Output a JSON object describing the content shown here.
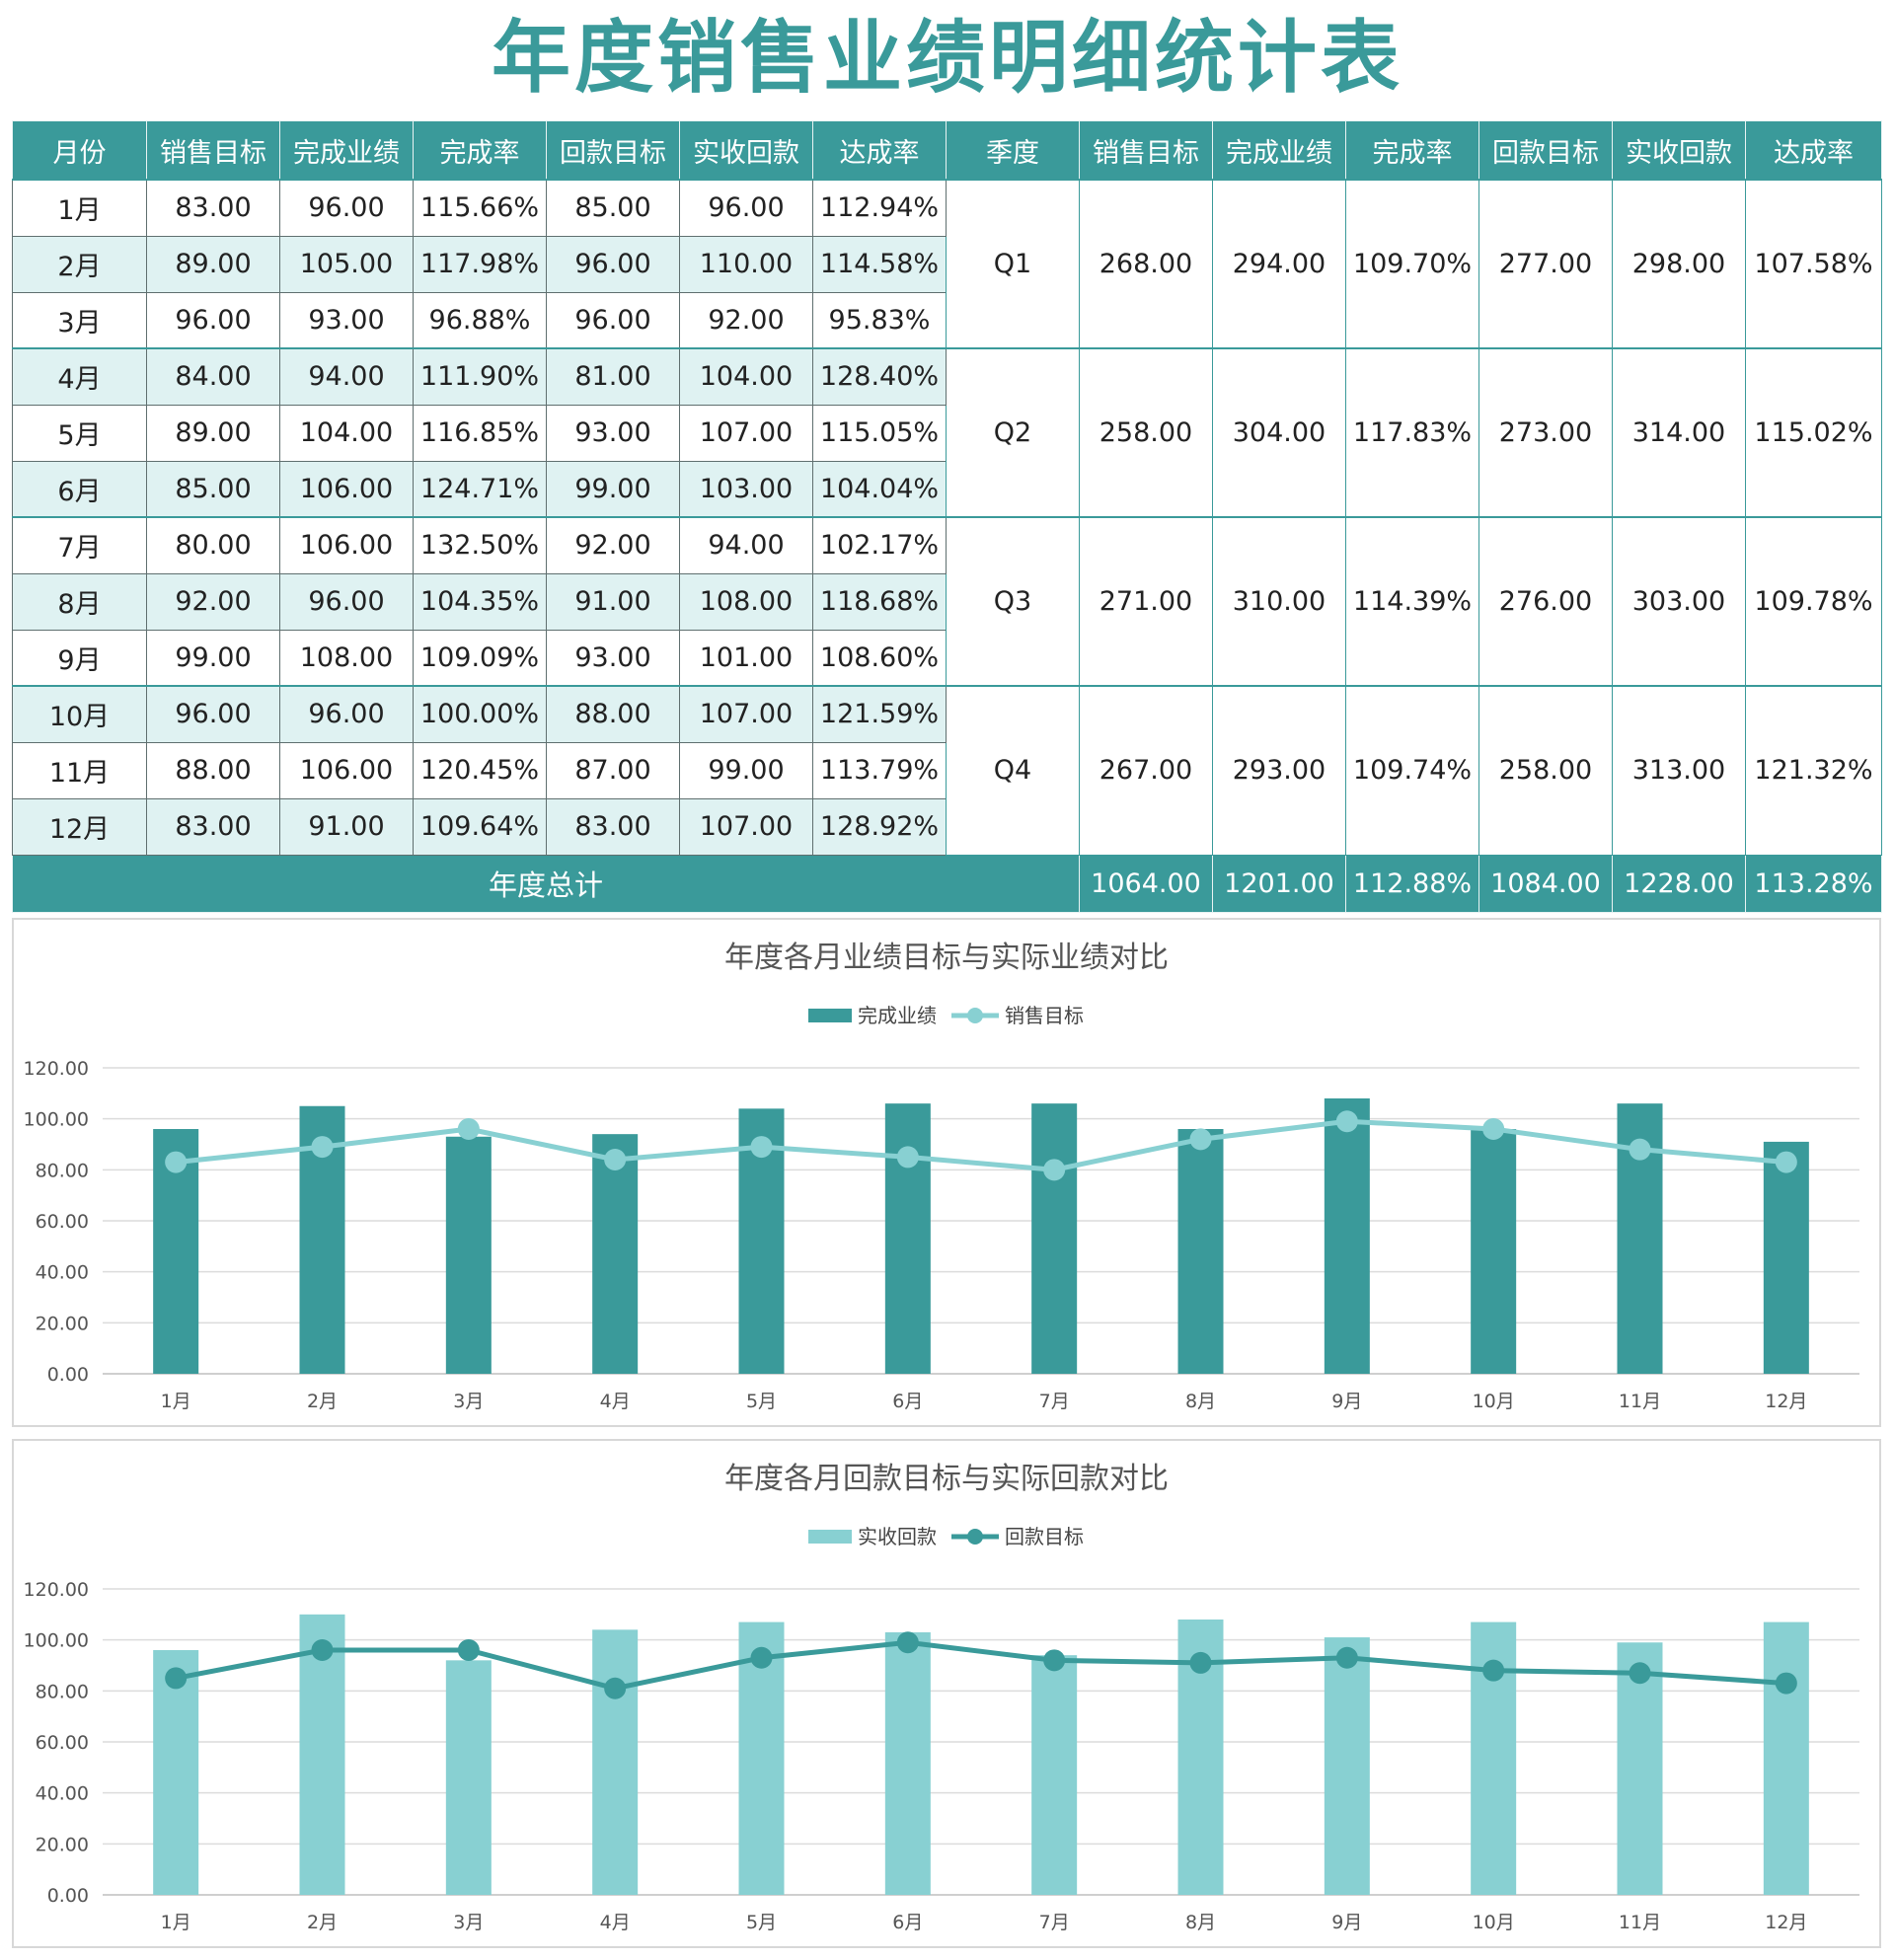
{
  "title": "年度销售业绩明细统计表",
  "colors": {
    "teal": "#3a9a9a",
    "light_teal": "#88d0d2",
    "alt_row": "#dff2f2"
  },
  "table": {
    "headers": [
      "月份",
      "销售目标",
      "完成业绩",
      "完成率",
      "回款目标",
      "实收回款",
      "达成率",
      "季度",
      "销售目标",
      "完成业绩",
      "完成率",
      "回款目标",
      "实收回款",
      "达成率"
    ],
    "months": [
      {
        "month": "1月",
        "target": "83.00",
        "done": "96.00",
        "rate": "115.66%",
        "pay_target": "85.00",
        "pay_recv": "96.00",
        "pay_rate": "112.94%"
      },
      {
        "month": "2月",
        "target": "89.00",
        "done": "105.00",
        "rate": "117.98%",
        "pay_target": "96.00",
        "pay_recv": "110.00",
        "pay_rate": "114.58%"
      },
      {
        "month": "3月",
        "target": "96.00",
        "done": "93.00",
        "rate": "96.88%",
        "pay_target": "96.00",
        "pay_recv": "92.00",
        "pay_rate": "95.83%"
      },
      {
        "month": "4月",
        "target": "84.00",
        "done": "94.00",
        "rate": "111.90%",
        "pay_target": "81.00",
        "pay_recv": "104.00",
        "pay_rate": "128.40%"
      },
      {
        "month": "5月",
        "target": "89.00",
        "done": "104.00",
        "rate": "116.85%",
        "pay_target": "93.00",
        "pay_recv": "107.00",
        "pay_rate": "115.05%"
      },
      {
        "month": "6月",
        "target": "85.00",
        "done": "106.00",
        "rate": "124.71%",
        "pay_target": "99.00",
        "pay_recv": "103.00",
        "pay_rate": "104.04%"
      },
      {
        "month": "7月",
        "target": "80.00",
        "done": "106.00",
        "rate": "132.50%",
        "pay_target": "92.00",
        "pay_recv": "94.00",
        "pay_rate": "102.17%"
      },
      {
        "month": "8月",
        "target": "92.00",
        "done": "96.00",
        "rate": "104.35%",
        "pay_target": "91.00",
        "pay_recv": "108.00",
        "pay_rate": "118.68%"
      },
      {
        "month": "9月",
        "target": "99.00",
        "done": "108.00",
        "rate": "109.09%",
        "pay_target": "93.00",
        "pay_recv": "101.00",
        "pay_rate": "108.60%"
      },
      {
        "month": "10月",
        "target": "96.00",
        "done": "96.00",
        "rate": "100.00%",
        "pay_target": "88.00",
        "pay_recv": "107.00",
        "pay_rate": "121.59%"
      },
      {
        "month": "11月",
        "target": "88.00",
        "done": "106.00",
        "rate": "120.45%",
        "pay_target": "87.00",
        "pay_recv": "99.00",
        "pay_rate": "113.79%"
      },
      {
        "month": "12月",
        "target": "83.00",
        "done": "91.00",
        "rate": "109.64%",
        "pay_target": "83.00",
        "pay_recv": "107.00",
        "pay_rate": "128.92%"
      }
    ],
    "quarters": [
      {
        "q": "Q1",
        "target": "268.00",
        "done": "294.00",
        "rate": "109.70%",
        "pay_target": "277.00",
        "pay_recv": "298.00",
        "pay_rate": "107.58%"
      },
      {
        "q": "Q2",
        "target": "258.00",
        "done": "304.00",
        "rate": "117.83%",
        "pay_target": "273.00",
        "pay_recv": "314.00",
        "pay_rate": "115.02%"
      },
      {
        "q": "Q3",
        "target": "271.00",
        "done": "310.00",
        "rate": "114.39%",
        "pay_target": "276.00",
        "pay_recv": "303.00",
        "pay_rate": "109.78%"
      },
      {
        "q": "Q4",
        "target": "267.00",
        "done": "293.00",
        "rate": "109.74%",
        "pay_target": "258.00",
        "pay_recv": "313.00",
        "pay_rate": "121.32%"
      }
    ],
    "total": {
      "label": "年度总计",
      "target": "1064.00",
      "done": "1201.00",
      "rate": "112.88%",
      "pay_target": "1084.00",
      "pay_recv": "1228.00",
      "pay_rate": "113.28%"
    }
  },
  "chart_data": [
    {
      "type": "bar",
      "title": "年度各月业绩目标与实际业绩对比",
      "categories": [
        "1月",
        "2月",
        "3月",
        "4月",
        "5月",
        "6月",
        "7月",
        "8月",
        "9月",
        "10月",
        "11月",
        "12月"
      ],
      "series": [
        {
          "name": "完成业绩",
          "type": "bar",
          "color": "#3a9a9a",
          "values": [
            96,
            105,
            93,
            94,
            104,
            106,
            106,
            96,
            108,
            96,
            106,
            91
          ]
        },
        {
          "name": "销售目标",
          "type": "line",
          "color": "#88d0d2",
          "values": [
            83,
            89,
            96,
            84,
            89,
            85,
            80,
            92,
            99,
            96,
            88,
            83
          ]
        }
      ],
      "ylim": [
        0,
        120
      ],
      "yticks": [
        "0.00",
        "20.00",
        "40.00",
        "60.00",
        "80.00",
        "100.00",
        "120.00"
      ],
      "legend": "top-center",
      "grid": true
    },
    {
      "type": "bar",
      "title": "年度各月回款目标与实际回款对比",
      "categories": [
        "1月",
        "2月",
        "3月",
        "4月",
        "5月",
        "6月",
        "7月",
        "8月",
        "9月",
        "10月",
        "11月",
        "12月"
      ],
      "series": [
        {
          "name": "实收回款",
          "type": "bar",
          "color": "#88d0d2",
          "values": [
            96,
            110,
            92,
            104,
            107,
            103,
            94,
            108,
            101,
            107,
            99,
            107
          ]
        },
        {
          "name": "回款目标",
          "type": "line",
          "color": "#3a9a9a",
          "values": [
            85,
            96,
            96,
            81,
            93,
            99,
            92,
            91,
            93,
            88,
            87,
            83
          ]
        }
      ],
      "ylim": [
        0,
        120
      ],
      "yticks": [
        "0.00",
        "20.00",
        "40.00",
        "60.00",
        "80.00",
        "100.00",
        "120.00"
      ],
      "legend": "top-center",
      "grid": true
    }
  ]
}
